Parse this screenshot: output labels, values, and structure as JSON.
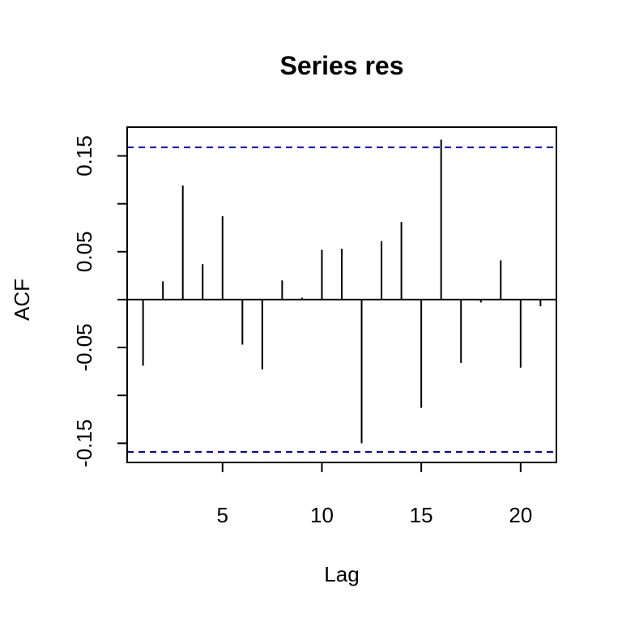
{
  "chart_data": {
    "type": "acf-bar",
    "title": "Series res",
    "xlabel": "Lag",
    "ylabel": "ACF",
    "xlim": [
      0.2,
      21.8
    ],
    "ylim": [
      -0.17,
      0.18
    ],
    "x_ticks": [
      5,
      10,
      15,
      20
    ],
    "x_tick_labels": [
      "5",
      "10",
      "15",
      "20"
    ],
    "y_ticks": [
      -0.15,
      -0.1,
      -0.05,
      0.0,
      0.05,
      0.1,
      0.15
    ],
    "y_tick_labels": [
      "-0.15",
      "",
      "-0.05",
      "",
      "0.05",
      "",
      "0.15"
    ],
    "confidence_bound": 0.159,
    "confidence_color": "#0000cc",
    "bar_color": "#000000",
    "lags": [
      1,
      2,
      3,
      4,
      5,
      6,
      7,
      8,
      9,
      10,
      11,
      12,
      13,
      14,
      15,
      16,
      17,
      18,
      19,
      20,
      21
    ],
    "values": [
      -0.069,
      0.019,
      0.119,
      0.037,
      0.087,
      -0.047,
      -0.073,
      0.02,
      0.002,
      0.052,
      0.053,
      -0.15,
      0.061,
      0.081,
      -0.113,
      0.167,
      -0.066,
      -0.003,
      0.041,
      -0.071,
      -0.007
    ],
    "grid": false
  }
}
